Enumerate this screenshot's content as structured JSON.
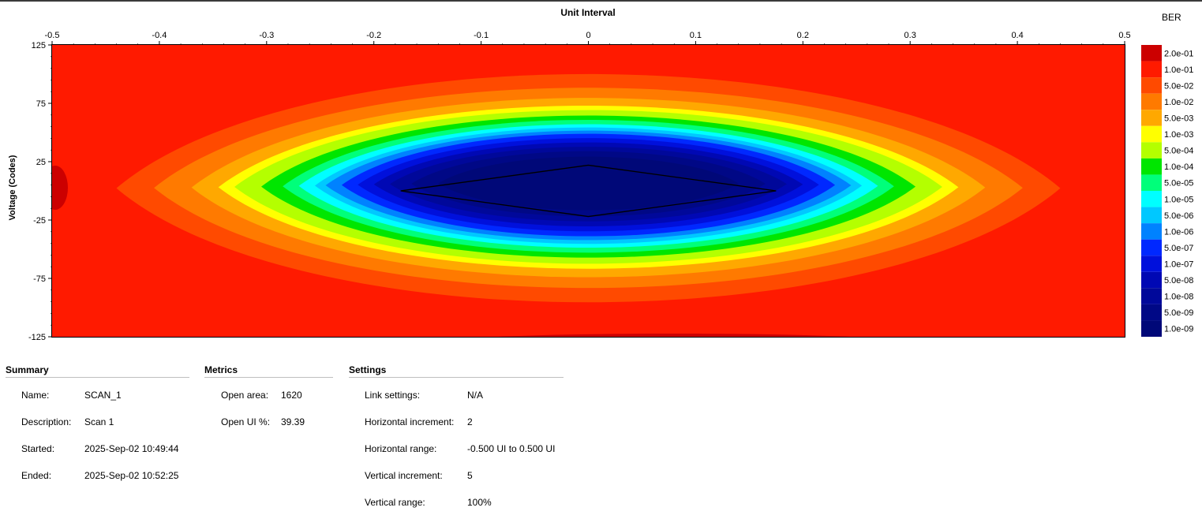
{
  "chart_data": {
    "type": "heatmap",
    "title": "Unit Interval",
    "xlabel": "Unit Interval",
    "ylabel": "Voltage (Codes)",
    "xlim": [
      -0.5,
      0.5
    ],
    "ylim": [
      -125,
      125
    ],
    "x_ticks": [
      "-0.5",
      "-0.4",
      "-0.3",
      "-0.2",
      "-0.1",
      "0",
      "0.1",
      "0.2",
      "0.3",
      "0.4",
      "0.5"
    ],
    "y_ticks": [
      "125",
      "75",
      "25",
      "-25",
      "-75",
      "-125"
    ],
    "legend_title": "BER",
    "legend": [
      {
        "label": "2.0e-01",
        "color": "#cc0000"
      },
      {
        "label": "1.0e-01",
        "color": "#ff1a00"
      },
      {
        "label": "5.0e-02",
        "color": "#ff4a00"
      },
      {
        "label": "1.0e-02",
        "color": "#ff7a00"
      },
      {
        "label": "5.0e-03",
        "color": "#ffa800"
      },
      {
        "label": "1.0e-03",
        "color": "#ffff00"
      },
      {
        "label": "5.0e-04",
        "color": "#b4ff00"
      },
      {
        "label": "1.0e-04",
        "color": "#00e600"
      },
      {
        "label": "5.0e-05",
        "color": "#00ff7a"
      },
      {
        "label": "1.0e-05",
        "color": "#00ffff"
      },
      {
        "label": "5.0e-06",
        "color": "#00c8ff"
      },
      {
        "label": "1.0e-06",
        "color": "#0082ff"
      },
      {
        "label": "5.0e-07",
        "color": "#0028ff"
      },
      {
        "label": "1.0e-07",
        "color": "#0010dc"
      },
      {
        "label": "5.0e-08",
        "color": "#0008b4"
      },
      {
        "label": "1.0e-08",
        "color": "#00089a"
      },
      {
        "label": "5.0e-09",
        "color": "#000886"
      },
      {
        "label": "1.0e-09",
        "color": "#000878"
      }
    ],
    "contours": [
      {
        "ber": "1.0e-01",
        "half_width_ui": 0.5,
        "half_height_codes": 118
      },
      {
        "ber": "5.0e-02",
        "half_width_ui": 0.44,
        "half_height_codes": 98
      },
      {
        "ber": "1.0e-02",
        "half_width_ui": 0.405,
        "half_height_codes": 86
      },
      {
        "ber": "5.0e-03",
        "half_width_ui": 0.37,
        "half_height_codes": 77
      },
      {
        "ber": "1.0e-03",
        "half_width_ui": 0.345,
        "half_height_codes": 70
      },
      {
        "ber": "5.0e-04",
        "half_width_ui": 0.33,
        "half_height_codes": 66
      },
      {
        "ber": "1.0e-04",
        "half_width_ui": 0.305,
        "half_height_codes": 61
      },
      {
        "ber": "5.0e-05",
        "half_width_ui": 0.285,
        "half_height_codes": 57
      },
      {
        "ber": "1.0e-05",
        "half_width_ui": 0.27,
        "half_height_codes": 53
      },
      {
        "ber": "5.0e-06",
        "half_width_ui": 0.255,
        "half_height_codes": 50
      },
      {
        "ber": "1.0e-06",
        "half_width_ui": 0.245,
        "half_height_codes": 47
      },
      {
        "ber": "5.0e-07",
        "half_width_ui": 0.23,
        "half_height_codes": 44
      },
      {
        "ber": "1.0e-07",
        "half_width_ui": 0.215,
        "half_height_codes": 40
      },
      {
        "ber": "5.0e-08",
        "half_width_ui": 0.2,
        "half_height_codes": 36
      },
      {
        "ber": "1.0e-08",
        "half_width_ui": 0.185,
        "half_height_codes": 32
      },
      {
        "ber": "5.0e-09",
        "half_width_ui": 0.165,
        "half_height_codes": 28
      },
      {
        "ber": "1.0e-09",
        "half_width_ui": 0.14,
        "half_height_codes": 23
      }
    ],
    "eye_opening": {
      "points": [
        [
          -0.175,
          0
        ],
        [
          0,
          22
        ],
        [
          0.175,
          0
        ],
        [
          0,
          -22
        ]
      ],
      "color": "#000000"
    }
  },
  "summary": {
    "title": "Summary",
    "rows": [
      {
        "label": "Name:",
        "value": "SCAN_1"
      },
      {
        "label": "Description:",
        "value": "Scan 1"
      },
      {
        "label": "Started:",
        "value": "2025-Sep-02 10:49:44"
      },
      {
        "label": "Ended:",
        "value": "2025-Sep-02 10:52:25"
      }
    ]
  },
  "metrics": {
    "title": "Metrics",
    "rows": [
      {
        "label": "Open area:",
        "value": "1620"
      },
      {
        "label": "Open UI %:",
        "value": "39.39"
      }
    ]
  },
  "settings": {
    "title": "Settings",
    "rows": [
      {
        "label": "Link settings:",
        "value": "N/A"
      },
      {
        "label": "Horizontal increment:",
        "value": "2"
      },
      {
        "label": "Horizontal range:",
        "value": "-0.500 UI to 0.500 UI"
      },
      {
        "label": "Vertical increment:",
        "value": "5"
      },
      {
        "label": "Vertical range:",
        "value": "100%"
      }
    ]
  }
}
